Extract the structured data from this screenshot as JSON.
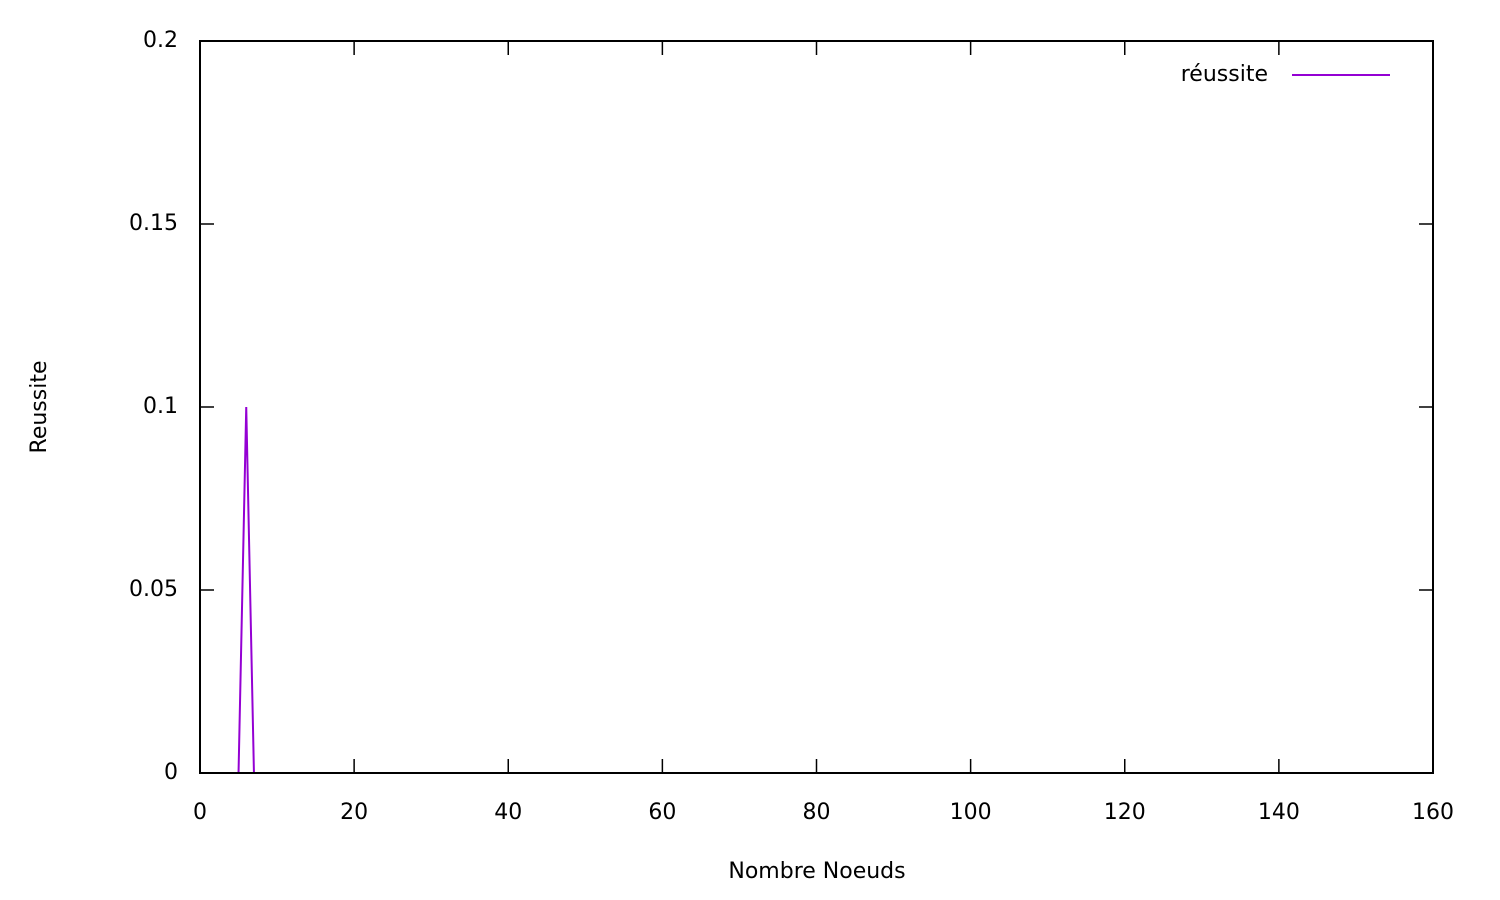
{
  "chart_data": {
    "type": "line",
    "xlabel": "Nombre Noeuds",
    "ylabel": "Reussite",
    "x": [
      5,
      6,
      7,
      160
    ],
    "series": [
      {
        "name": "réussite",
        "color": "#9400d3",
        "values": [
          0,
          0.1,
          0,
          0
        ]
      }
    ],
    "xlim": [
      0,
      160
    ],
    "xticks": [
      0,
      20,
      40,
      60,
      80,
      100,
      120,
      140,
      160
    ],
    "ylim": [
      0,
      0.2
    ],
    "yticks": [
      0,
      0.05,
      0.1,
      0.15,
      0.2
    ],
    "grid": false,
    "legend": "top-right"
  }
}
